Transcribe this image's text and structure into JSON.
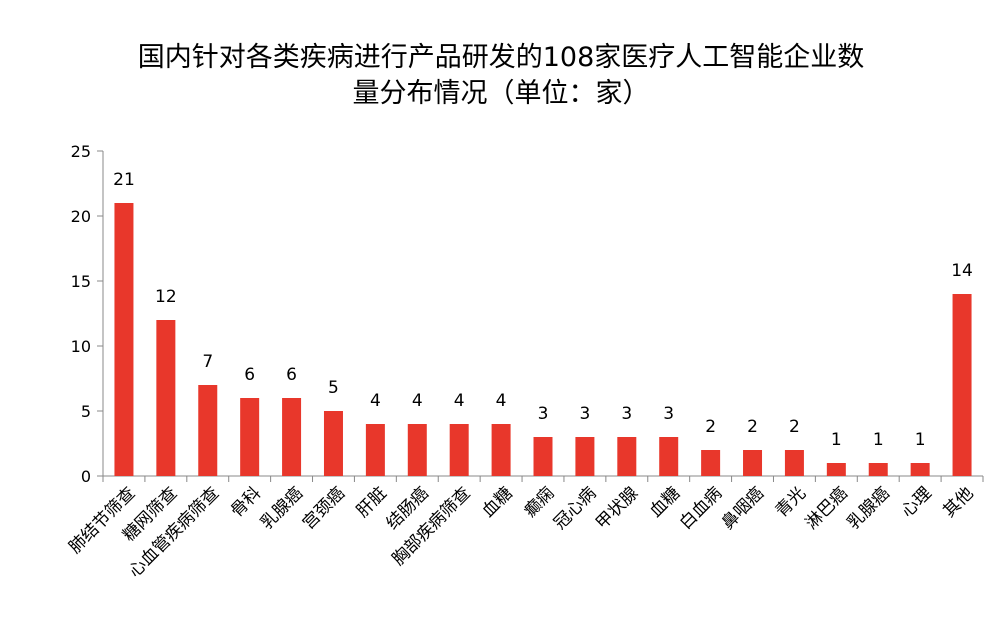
{
  "chart_data": {
    "type": "bar",
    "title_line1": "国内针对各类疾病进行产品研发的108家医疗人工智能企业数",
    "title_line2": "量分布情况（单位：家）",
    "categories": [
      "肺结节筛查",
      "糖网筛查",
      "心血管疾病筛查",
      "骨科",
      "乳腺癌",
      "宫颈癌",
      "肝脏",
      "结肠癌",
      "胸部疾病筛查",
      "血糖",
      "癫痫",
      "冠心病",
      "甲状腺",
      "血糖",
      "白血病",
      "鼻咽癌",
      "青光",
      "淋巴癌",
      "乳腺癌",
      "心理",
      "其他"
    ],
    "values": [
      21,
      12,
      7,
      6,
      6,
      5,
      4,
      4,
      4,
      4,
      3,
      3,
      3,
      3,
      2,
      2,
      2,
      1,
      1,
      1,
      14
    ],
    "ylim": [
      0,
      25
    ],
    "yticks": [
      0,
      5,
      10,
      15,
      20,
      25
    ],
    "bar_color": "#e8372b",
    "axis_color": "#888888",
    "grid": false,
    "legend": false,
    "xlabel": "",
    "ylabel": ""
  }
}
